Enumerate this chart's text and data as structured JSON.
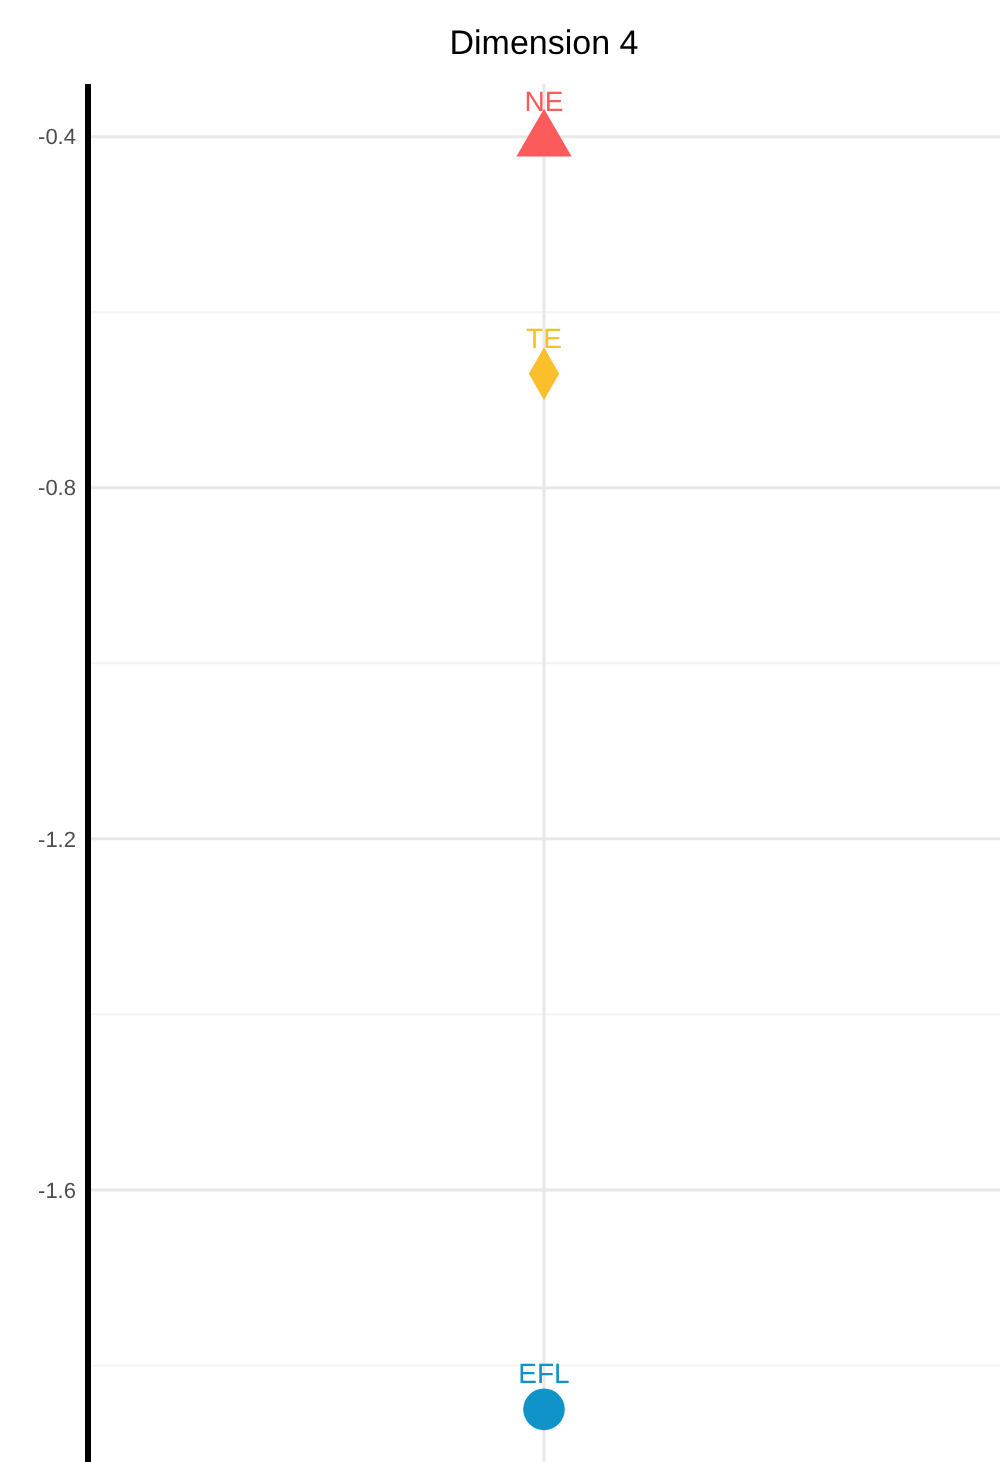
{
  "chart_data": {
    "type": "scatter",
    "title": "Dimension 4",
    "categories": [
      null
    ],
    "series": [
      {
        "name": "NE",
        "color": "#fc5b5b",
        "marker": "triangle",
        "values": [
          -0.4
        ]
      },
      {
        "name": "TE",
        "color": "#fbbf2c",
        "marker": "diamond",
        "values": [
          -0.67
        ]
      },
      {
        "name": "EFL",
        "color": "#0f93c8",
        "marker": "circle",
        "values": [
          -1.85
        ]
      }
    ],
    "ylim": [
      -1.91,
      -0.34
    ],
    "yticks": [
      -0.4,
      {
        "value": -0.6,
        "label": null
      },
      -0.8,
      {
        "value": -1.0,
        "label": null
      },
      -1.2,
      {
        "value": -1.4,
        "label": null
      },
      -1.6,
      {
        "value": -1.8,
        "label": null
      }
    ],
    "grid": true
  }
}
